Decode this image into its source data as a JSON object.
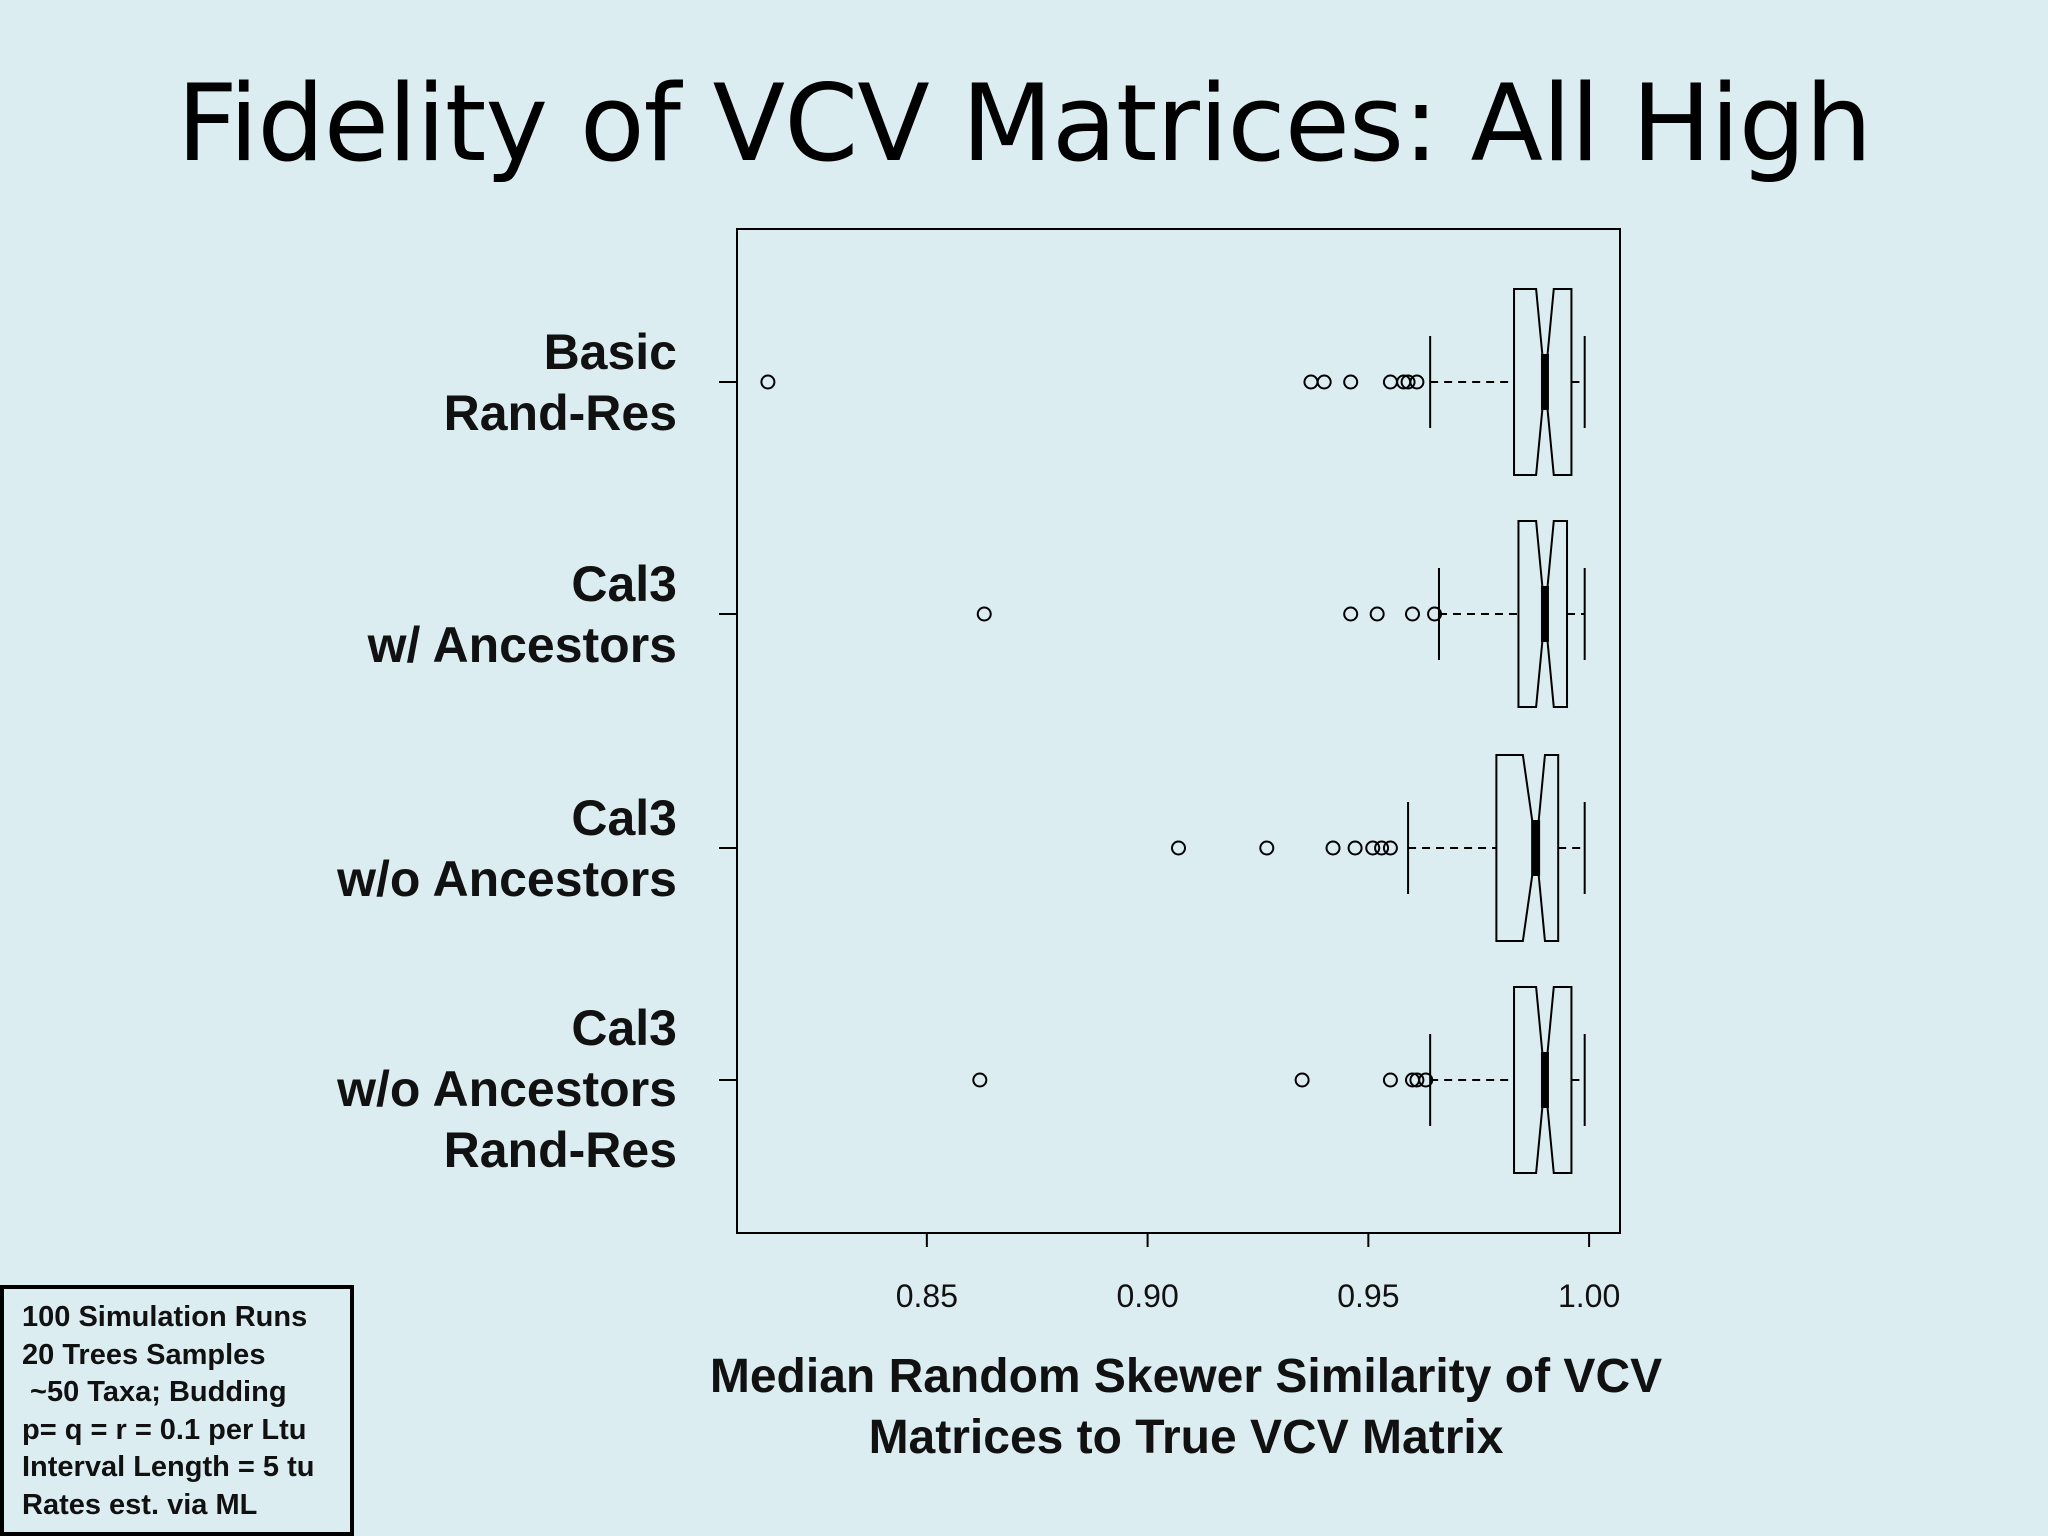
{
  "slide": {
    "title": "Fidelity of VCV Matrices: All High"
  },
  "notes": [
    "100 Simulation Runs",
    "20 Trees Samples",
    " ~50 Taxa; Budding",
    "p= q = r = 0.1 per Ltu",
    "Interval Length = 5 tu",
    "Rates est. via ML"
  ],
  "chart_data": {
    "type": "boxplot",
    "notched": true,
    "orientation": "horizontal",
    "xlabel_lines": [
      "Median Random Skewer Similarity of VCV",
      "Matrices to True VCV Matrix"
    ],
    "ylabel": "",
    "xlim": [
      0.807,
      1.007
    ],
    "xticks": [
      0.85,
      0.9,
      0.95,
      1.0
    ],
    "xtick_labels": [
      "0.85",
      "0.90",
      "0.95",
      "1.00"
    ],
    "categories": [
      {
        "lines": [
          "Basic",
          "Rand-Res"
        ],
        "whisker_low": 0.964,
        "q1": 0.983,
        "median": 0.99,
        "q3": 0.996,
        "whisker_high": 0.999,
        "notch_low": 0.988,
        "notch_high": 0.992,
        "outliers": [
          0.814,
          0.937,
          0.94,
          0.946,
          0.955,
          0.958,
          0.959,
          0.961
        ]
      },
      {
        "lines": [
          "Cal3",
          "w/ Ancestors"
        ],
        "whisker_low": 0.966,
        "q1": 0.984,
        "median": 0.99,
        "q3": 0.995,
        "whisker_high": 0.999,
        "notch_low": 0.988,
        "notch_high": 0.992,
        "outliers": [
          0.863,
          0.946,
          0.952,
          0.96,
          0.965
        ]
      },
      {
        "lines": [
          "Cal3",
          "w/o Ancestors"
        ],
        "whisker_low": 0.959,
        "q1": 0.979,
        "median": 0.988,
        "q3": 0.993,
        "whisker_high": 0.999,
        "notch_low": 0.985,
        "notch_high": 0.99,
        "outliers": [
          0.907,
          0.927,
          0.942,
          0.947,
          0.951,
          0.953,
          0.955
        ]
      },
      {
        "lines": [
          "Cal3",
          "w/o Ancestors",
          "Rand-Res"
        ],
        "whisker_low": 0.964,
        "q1": 0.983,
        "median": 0.99,
        "q3": 0.996,
        "whisker_high": 0.999,
        "notch_low": 0.988,
        "notch_high": 0.992,
        "outliers": [
          0.862,
          0.935,
          0.955,
          0.96,
          0.961,
          0.963
        ]
      }
    ]
  }
}
